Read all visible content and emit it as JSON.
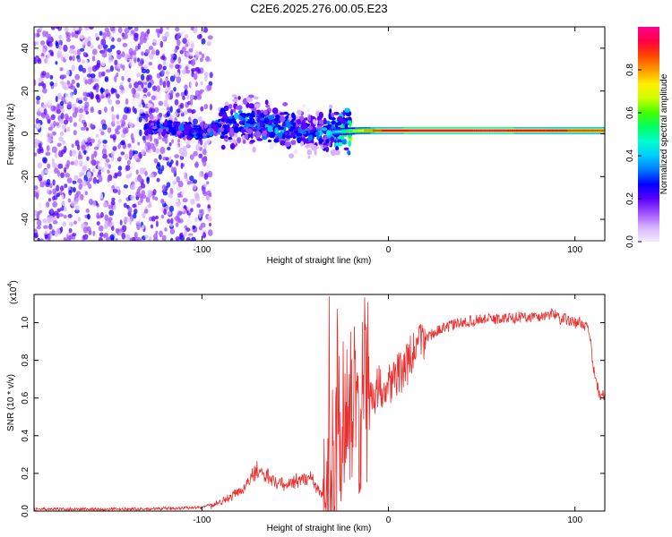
{
  "title": "C2E6.2025.276.00.05.E23",
  "chart_data": [
    {
      "type": "heatmap",
      "xlabel": "Height of straight line (km)",
      "ylabel": "Frequency (Hz)",
      "xlim": [
        -190,
        116
      ],
      "ylim": [
        -50,
        50
      ],
      "xticks": [
        -100,
        0,
        100
      ],
      "yticks": [
        -40,
        -20,
        0,
        20,
        40
      ],
      "colorbar": {
        "label": "Normalized spectral amplitude",
        "range": [
          0,
          1
        ],
        "ticks": [
          "0.0",
          "0.2",
          "0.4",
          "0.6",
          "0.8"
        ],
        "colors": [
          "#f4eaff",
          "#d6b4ff",
          "#a050ff",
          "#5a00ff",
          "#0000ff",
          "#0078ff",
          "#00ccff",
          "#00ffcc",
          "#00ff66",
          "#44ff00",
          "#ccff00",
          "#ffee00",
          "#ff9900",
          "#ff4400",
          "#ff0044",
          "#ff0090"
        ]
      },
      "ridge": [
        {
          "x": -125,
          "f": 3,
          "a": 0.3
        },
        {
          "x": -100,
          "f": 1,
          "a": 0.32
        },
        {
          "x": -80,
          "f": 7,
          "a": 0.35
        },
        {
          "x": -60,
          "f": 3,
          "a": 0.38
        },
        {
          "x": -40,
          "f": 0,
          "a": 0.3
        },
        {
          "x": -28,
          "f": 1,
          "a": 0.45
        },
        {
          "x": -15,
          "f": 1.5,
          "a": 0.75
        },
        {
          "x": 0,
          "f": 1.5,
          "a": 0.95
        },
        {
          "x": 30,
          "f": 1.5,
          "a": 1.0
        },
        {
          "x": 80,
          "f": 1.5,
          "a": 0.95
        },
        {
          "x": 112,
          "f": 1.5,
          "a": 0.85
        }
      ]
    },
    {
      "type": "line",
      "xlabel": "Height of straight line (km)",
      "ylabel": "SNR (10 * v/v)",
      "yscale_label": "(x10",
      "yscale_exponent": "4",
      "xlim": [
        -190,
        116
      ],
      "ylim": [
        0,
        1.15
      ],
      "xticks": [
        -100,
        0,
        100
      ],
      "yticks": [
        "0.0",
        "0.2",
        "0.4",
        "0.6",
        "0.8",
        "1.0"
      ],
      "series": [
        {
          "name": "SNR",
          "color": "#e8302f",
          "x": [
            -190,
            -160,
            -130,
            -115,
            -100,
            -92,
            -85,
            -78,
            -73,
            -70,
            -67,
            -62,
            -55,
            -48,
            -42,
            -37,
            -33,
            -28,
            -24,
            -21,
            -18,
            -14,
            -10,
            -5,
            0,
            5,
            10,
            15,
            20,
            25,
            30,
            35,
            40,
            50,
            60,
            70,
            80,
            85,
            90,
            92,
            95,
            100,
            104,
            106,
            108,
            110,
            113,
            116
          ],
          "y": [
            0.01,
            0.01,
            0.01,
            0.015,
            0.02,
            0.04,
            0.07,
            0.12,
            0.18,
            0.22,
            0.2,
            0.16,
            0.14,
            0.16,
            0.18,
            0.1,
            0.05,
            0.35,
            0.55,
            0.5,
            0.58,
            0.5,
            0.6,
            0.66,
            0.68,
            0.72,
            0.78,
            0.87,
            0.92,
            0.95,
            0.97,
            0.99,
            1.0,
            1.02,
            1.02,
            1.03,
            1.03,
            1.04,
            1.05,
            1.02,
            1.02,
            1.0,
            1.0,
            0.98,
            0.93,
            0.75,
            0.62,
            0.61
          ]
        }
      ]
    }
  ]
}
